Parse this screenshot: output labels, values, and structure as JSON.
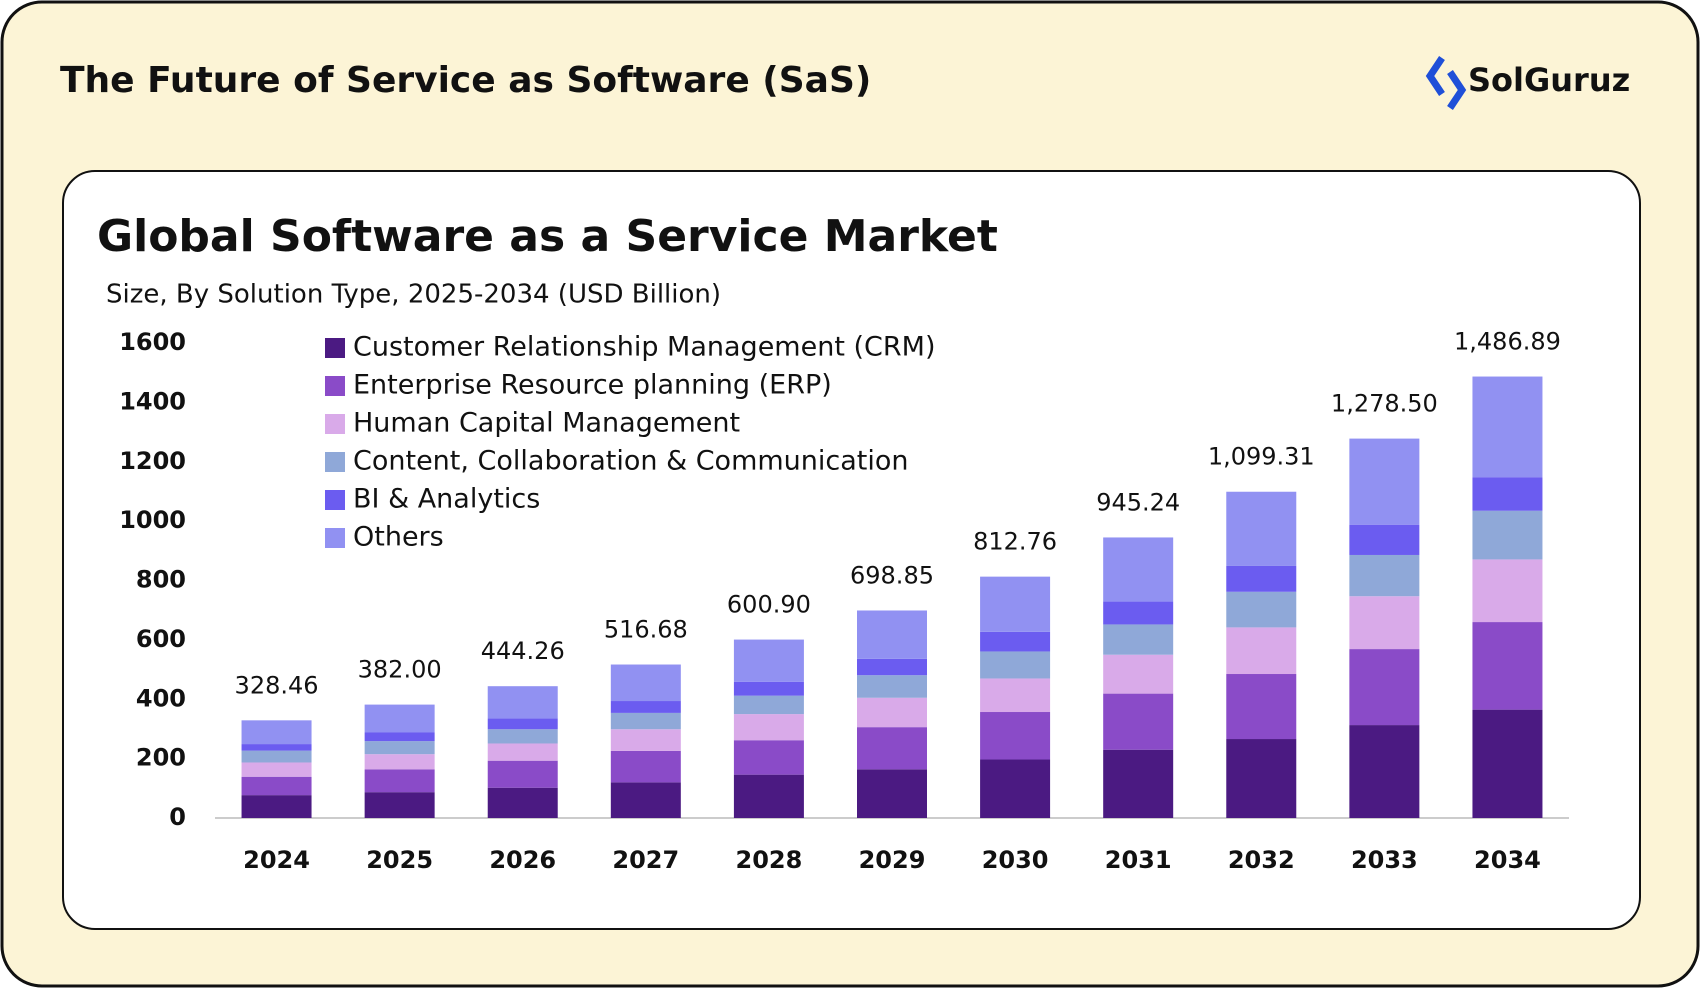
{
  "header": {
    "title": "The Future of Service as Software (SaS)",
    "logo": "SolGuruz"
  },
  "chart_data": {
    "type": "stacked_bar",
    "title": "Global Software as a Service Market",
    "subtitle": "Size, By Solution Type, 2025-2034 (USD Billion)",
    "categories": [
      "2024",
      "2025",
      "2026",
      "2027",
      "2028",
      "2029",
      "2030",
      "2031",
      "2032",
      "2033",
      "2034"
    ],
    "series": [
      {
        "name": "Customer Relationship Management (CRM)",
        "color": "#4b1a82",
        "values": [
          77,
          87,
          102,
          120,
          146,
          164,
          197,
          230,
          266,
          313,
          365
        ]
      },
      {
        "name": "Enterprise Resource planning (ERP)",
        "color": "#8a4bc8",
        "values": [
          62,
          77,
          91,
          106,
          116,
          142,
          160,
          189,
          219,
          256,
          295
        ]
      },
      {
        "name": "Human Capital Management",
        "color": "#d9aae9",
        "values": [
          48,
          51,
          58,
          73,
          88,
          99,
          113,
          131,
          157,
          178,
          211
        ]
      },
      {
        "name": "Content, Collaboration & Communication",
        "color": "#8fa8d8",
        "values": [
          40,
          44,
          48,
          55,
          62,
          76,
          91,
          102,
          120,
          139,
          164
        ]
      },
      {
        "name": "BI & Analytics",
        "color": "#6b5cf0",
        "values": [
          22,
          29,
          36,
          40,
          47,
          55,
          66,
          77,
          87,
          102,
          113
        ]
      },
      {
        "name": "Others",
        "color": "#9191f2",
        "values": [
          80,
          94,
          109,
          123,
          142,
          163,
          186,
          216,
          250,
          290,
          339
        ]
      }
    ],
    "totals": [
      328.46,
      382.0,
      444.26,
      516.68,
      600.9,
      698.85,
      812.76,
      945.24,
      1099.31,
      1278.5,
      1486.89
    ],
    "total_labels": [
      "328.46",
      "382.00",
      "444.26",
      "516.68",
      "600.90",
      "698.85",
      "812.76",
      "945.24",
      "1,099.31",
      "1,278.50",
      "1,486.89"
    ],
    "ylim": [
      0,
      1600
    ],
    "yticks": [
      0,
      200,
      400,
      600,
      800,
      1000,
      1200,
      1400,
      1600
    ],
    "grid": false
  }
}
